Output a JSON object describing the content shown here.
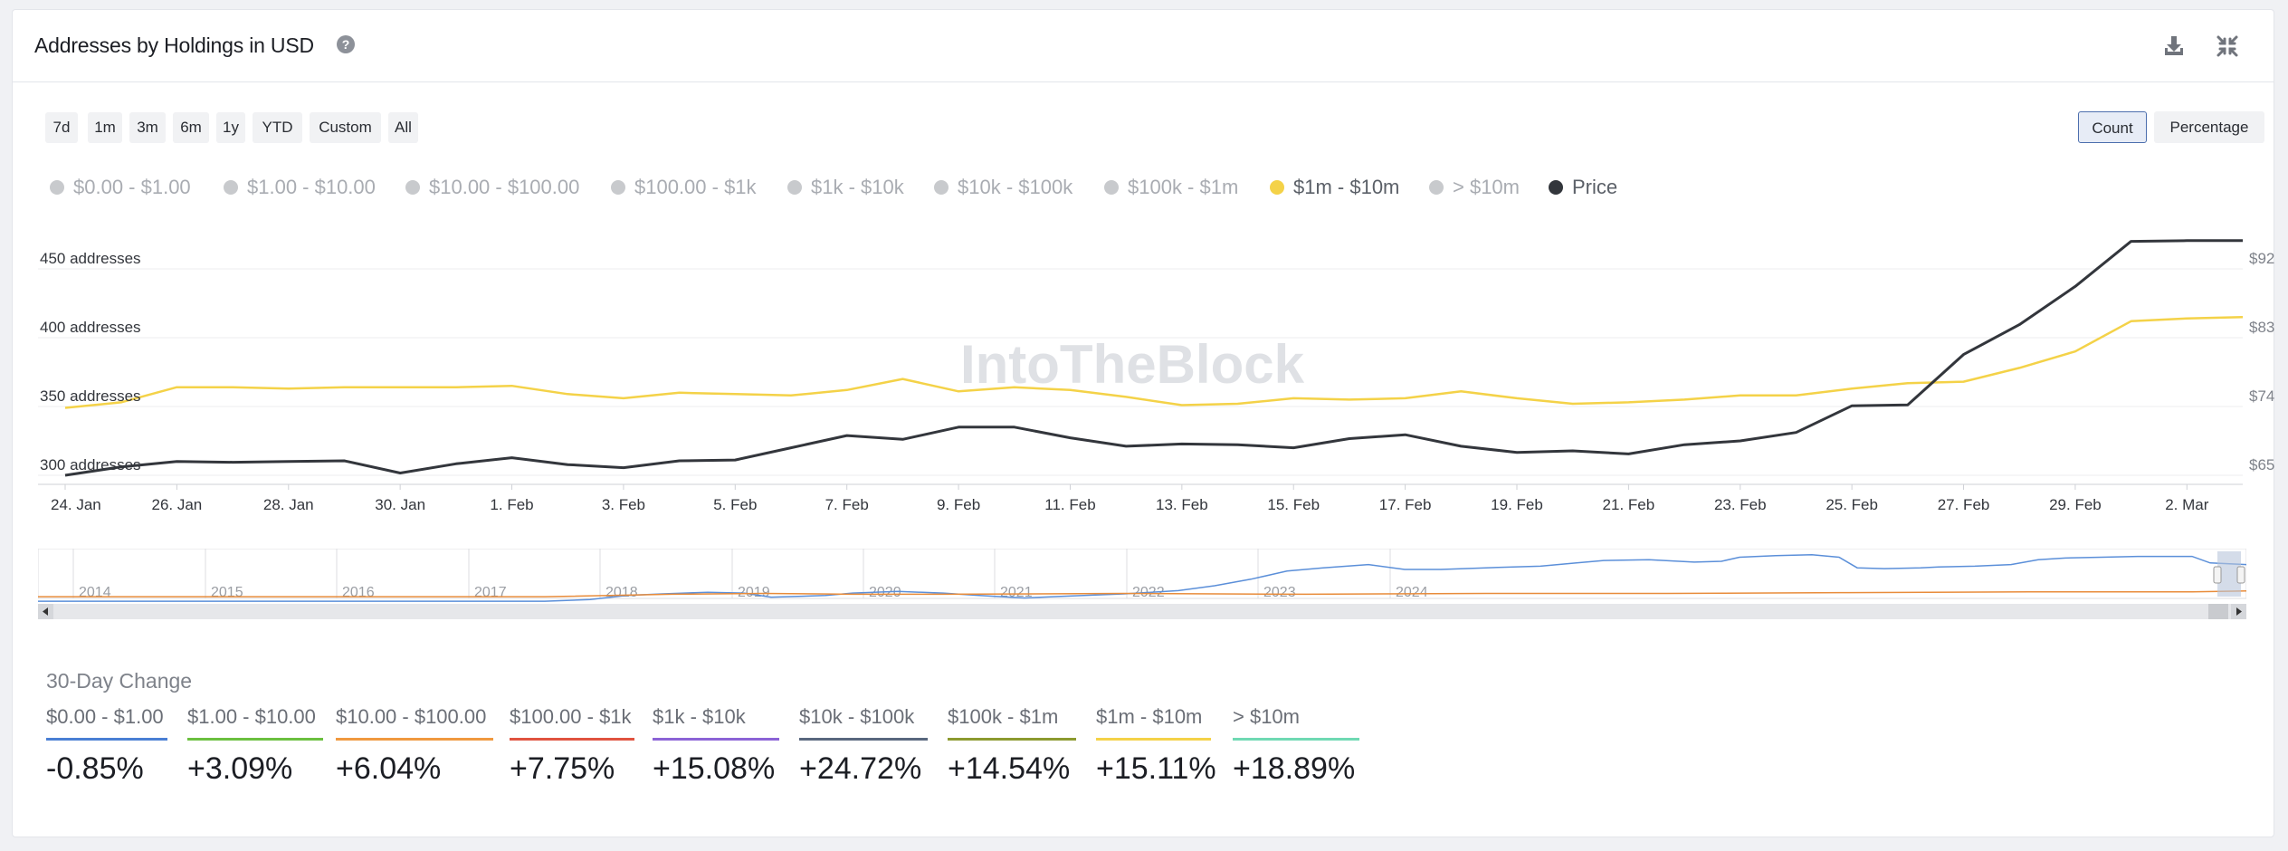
{
  "header": {
    "title": "Addresses by Holdings in USD",
    "help_icon": "question-circle-icon",
    "download_icon": "download-icon",
    "collapse_icon": "collapse-arrows-icon"
  },
  "time_ranges": [
    "7d",
    "1m",
    "3m",
    "6m",
    "1y",
    "YTD",
    "Custom",
    "All"
  ],
  "modes": {
    "count": "Count",
    "percentage": "Percentage",
    "active": "Count"
  },
  "legend": [
    {
      "label": "$0.00 - $1.00",
      "active": false
    },
    {
      "label": "$1.00 - $10.00",
      "active": false
    },
    {
      "label": "$10.00 - $100.00",
      "active": false
    },
    {
      "label": "$100.00 - $1k",
      "active": false
    },
    {
      "label": "$1k - $10k",
      "active": false
    },
    {
      "label": "$10k - $100k",
      "active": false
    },
    {
      "label": "$100k - $1m",
      "active": false
    },
    {
      "label": "$1m - $10m",
      "active": true,
      "color": "#f4d248"
    },
    {
      "label": "> $10m",
      "active": false
    },
    {
      "label": "Price",
      "active": true,
      "color": "#33363c"
    }
  ],
  "colors": {
    "inactive_legend": "#c8cacd",
    "inactive_text": "#a9acb2",
    "active_text": "#5b6068",
    "watermark": "#dfe1e5"
  },
  "watermark": "IntoTheBlock",
  "chart_data": {
    "type": "line",
    "x": [
      "24. Jan",
      "25. Jan",
      "26. Jan",
      "27. Jan",
      "28. Jan",
      "29. Jan",
      "30. Jan",
      "31. Jan",
      "1. Feb",
      "2. Feb",
      "3. Feb",
      "4. Feb",
      "5. Feb",
      "6. Feb",
      "7. Feb",
      "8. Feb",
      "9. Feb",
      "10. Feb",
      "11. Feb",
      "12. Feb",
      "13. Feb",
      "14. Feb",
      "15. Feb",
      "16. Feb",
      "17. Feb",
      "18. Feb",
      "19. Feb",
      "20. Feb",
      "21. Feb",
      "22. Feb",
      "23. Feb",
      "24. Feb",
      "25. Feb",
      "26. Feb",
      "27. Feb",
      "28. Feb",
      "29. Feb",
      "1. Mar",
      "2. Mar",
      "3. Mar"
    ],
    "x_tick_labels": [
      "24. Jan",
      "26. Jan",
      "28. Jan",
      "30. Jan",
      "1. Feb",
      "3. Feb",
      "5. Feb",
      "7. Feb",
      "9. Feb",
      "11. Feb",
      "13. Feb",
      "15. Feb",
      "17. Feb",
      "19. Feb",
      "21. Feb",
      "23. Feb",
      "25. Feb",
      "27. Feb",
      "29. Feb",
      "2. Mar"
    ],
    "y_left": {
      "ticks": [
        "300 addresses",
        "350 addresses",
        "400 addresses",
        "450 addresses"
      ],
      "ylim": [
        300,
        450
      ]
    },
    "y_right": {
      "ticks": [
        "$65",
        "$74",
        "$83",
        "$92"
      ],
      "ylim": [
        65,
        92
      ]
    },
    "series": [
      {
        "name": "$1m - $10m",
        "axis": "left",
        "color": "#f4d248",
        "values": [
          349,
          353,
          364,
          364,
          363,
          364,
          364,
          364,
          365,
          359,
          356,
          360,
          359,
          358,
          362,
          370,
          361,
          364,
          362,
          357,
          351,
          352,
          356,
          355,
          356,
          361,
          356,
          352,
          353,
          355,
          358,
          358,
          363,
          367,
          368,
          378,
          390,
          412,
          414,
          415
        ]
      },
      {
        "name": "Price",
        "axis": "right",
        "color": "#33363c",
        "values": [
          65.0,
          66.1,
          66.8,
          66.7,
          66.8,
          66.9,
          65.3,
          66.5,
          67.3,
          66.4,
          66.0,
          66.9,
          67.0,
          68.6,
          70.2,
          69.7,
          71.3,
          71.3,
          69.9,
          68.8,
          69.1,
          69.0,
          68.6,
          69.8,
          70.3,
          68.8,
          68.0,
          68.2,
          67.8,
          69.0,
          69.5,
          70.6,
          74.1,
          74.2,
          80.8,
          84.7,
          89.7,
          95.6,
          95.7,
          95.7
        ]
      }
    ]
  },
  "navigator": {
    "years": [
      "2014",
      "2015",
      "2016",
      "2017",
      "2018",
      "2019",
      "2020",
      "2021",
      "2022",
      "2023",
      "2024"
    ],
    "line_color": "#5b8fd9",
    "secondary_colors": [
      "#f4d248",
      "#e88c3b",
      "#e05a4b"
    ]
  },
  "change": {
    "title": "30-Day Change",
    "items": [
      {
        "label": "$0.00 - $1.00",
        "value": "-0.85%",
        "color": "#4a7fd4"
      },
      {
        "label": "$1.00 - $10.00",
        "value": "+3.09%",
        "color": "#6bbf3f"
      },
      {
        "label": "$10.00 - $100.00",
        "value": "+6.04%",
        "color": "#f0993f"
      },
      {
        "label": "$100.00 - $1k",
        "value": "+7.75%",
        "color": "#e0533f"
      },
      {
        "label": "$1k - $10k",
        "value": "+15.08%",
        "color": "#8b63d6"
      },
      {
        "label": "$10k - $100k",
        "value": "+24.72%",
        "color": "#58677e"
      },
      {
        "label": "$100k - $1m",
        "value": "+14.54%",
        "color": "#8c9a2f"
      },
      {
        "label": "$1m - $10m",
        "value": "+15.11%",
        "color": "#f4d248"
      },
      {
        "label": "> $10m",
        "value": "+18.89%",
        "color": "#6fd9b3"
      }
    ]
  }
}
